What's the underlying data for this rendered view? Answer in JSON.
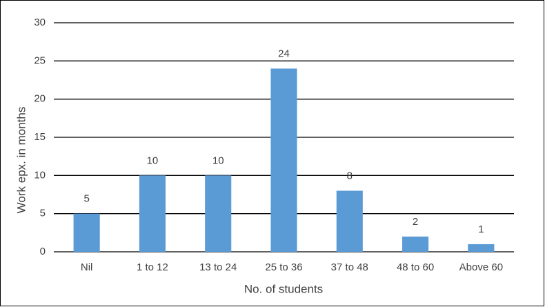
{
  "chart_data": {
    "type": "bar",
    "x_label": "No. of students",
    "y_label": "Work epx. in months",
    "categories": [
      "Nil",
      "1 to 12",
      "13 to 24",
      "25 to 36",
      "37 to 48",
      "48 to 60",
      "Above 60"
    ],
    "values": [
      5,
      10,
      10,
      24,
      8,
      2,
      1
    ],
    "color": "#5b9bd5",
    "ylim": [
      0,
      30
    ],
    "yticks": [
      0,
      5,
      10,
      15,
      20,
      25,
      30
    ],
    "grid": true,
    "data_labels": true
  }
}
